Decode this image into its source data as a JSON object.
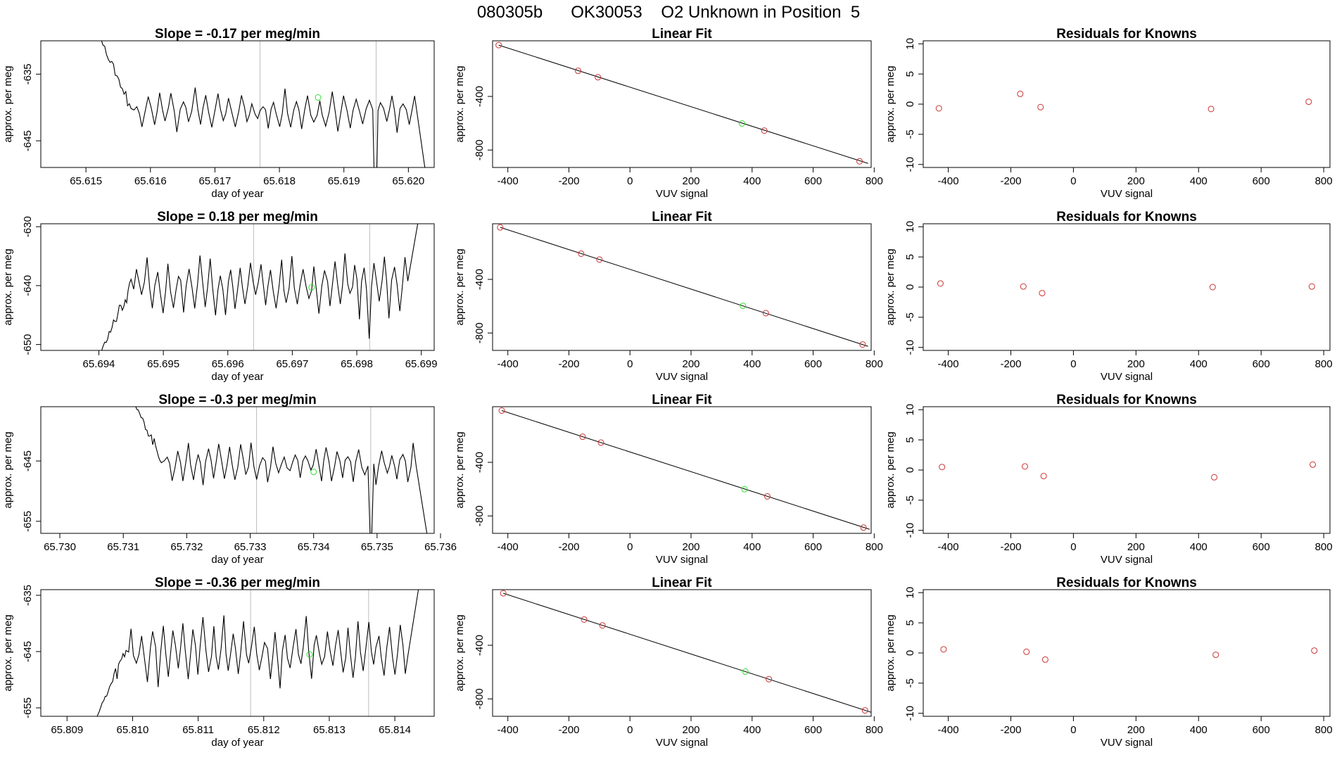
{
  "page": {
    "title": "080305b      OK30053    O2 Unknown in Position  5"
  },
  "colors": {
    "trace": "#000000",
    "axis": "#000000",
    "marker_line": "#bdbdbd",
    "unknown_point": "#33dd33",
    "known_point": "#cc3333"
  },
  "chart_data": [
    {
      "type": "line",
      "panel": "trace",
      "row": 1,
      "title": "Slope =  -0.17  per meg/min",
      "xlabel": "day of year",
      "ylabel": "approx. per meg",
      "xlim": [
        65.6143,
        65.6204
      ],
      "ylim": [
        -649,
        -630
      ],
      "xticks": [
        65.615,
        65.616,
        65.617,
        65.618,
        65.619,
        65.62
      ],
      "xtick_labels": [
        "65.615",
        "65.616",
        "65.617",
        "65.618",
        "65.619",
        "65.620"
      ],
      "yticks": [
        -635,
        -645
      ],
      "ytick_labels": [
        "-635",
        "-645"
      ],
      "vlines": [
        65.6177,
        65.6195
      ],
      "unknown_point": {
        "x": 65.6186,
        "y": -638.5
      },
      "trace_start": {
        "x": 65.6151,
        "y": -627
      },
      "trace_settle": {
        "x": 65.6157,
        "y": -640
      },
      "trace_end": {
        "x": 65.6203,
        "y": -652
      },
      "level": -640.5,
      "amplitude": 2.2,
      "period": 0.00018,
      "spikes": [
        {
          "x": 65.6195,
          "y": -660
        }
      ]
    },
    {
      "type": "line",
      "panel": "trace",
      "row": 2,
      "title": "Slope =  0.18  per meg/min",
      "xlabel": "day of year",
      "ylabel": "approx. per meg",
      "xlim": [
        65.6931,
        65.6992
      ],
      "ylim": [
        -651,
        -629.5
      ],
      "xticks": [
        65.694,
        65.695,
        65.696,
        65.697,
        65.698,
        65.699
      ],
      "xtick_labels": [
        "65.694",
        "65.695",
        "65.696",
        "65.697",
        "65.698",
        "65.699"
      ],
      "yticks": [
        -630,
        -640,
        -650
      ],
      "ytick_labels": [
        "-630",
        "-640",
        "-650"
      ],
      "vlines": [
        65.6964,
        65.6982
      ],
      "unknown_point": {
        "x": 65.6973,
        "y": -640.3
      },
      "trace_start": {
        "x": 65.694,
        "y": -652
      },
      "trace_settle": {
        "x": 65.6945,
        "y": -640
      },
      "trace_end": {
        "x": 65.699,
        "y": -626
      },
      "level": -640,
      "amplitude": 3.6,
      "period": 0.00016,
      "spikes": [
        {
          "x": 65.6982,
          "y": -649
        }
      ]
    },
    {
      "type": "line",
      "panel": "trace",
      "row": 3,
      "title": "Slope =  -0.3  per meg/min",
      "xlabel": "day of year",
      "ylabel": "approx. per meg",
      "xlim": [
        65.7297,
        65.7359
      ],
      "ylim": [
        -657,
        -636
      ],
      "xticks": [
        65.73,
        65.731,
        65.732,
        65.733,
        65.734,
        65.735,
        65.736
      ],
      "xtick_labels": [
        "65.730",
        "65.731",
        "65.732",
        "65.733",
        "65.734",
        "65.735",
        "65.736"
      ],
      "yticks": [
        -645,
        -655
      ],
      "ytick_labels": [
        "-645",
        "-655"
      ],
      "vlines": [
        65.7331,
        65.7349
      ],
      "unknown_point": {
        "x": 65.734,
        "y": -646.8
      },
      "trace_start": {
        "x": 65.7311,
        "y": -634
      },
      "trace_settle": {
        "x": 65.7316,
        "y": -644.5
      },
      "trace_end": {
        "x": 65.7358,
        "y": -658
      },
      "level": -645.5,
      "amplitude": 2.4,
      "period": 0.00017,
      "spikes": [
        {
          "x": 65.7349,
          "y": -662
        }
      ]
    },
    {
      "type": "line",
      "panel": "trace",
      "row": 4,
      "title": "Slope =  -0.36  per meg/min",
      "xlabel": "day of year",
      "ylabel": "approx. per meg",
      "xlim": [
        65.8086,
        65.8146
      ],
      "ylim": [
        -656.5,
        -634
      ],
      "xticks": [
        65.809,
        65.81,
        65.811,
        65.812,
        65.813,
        65.814
      ],
      "xtick_labels": [
        "65.809",
        "65.810",
        "65.811",
        "65.812",
        "65.813",
        "65.814"
      ],
      "yticks": [
        -635,
        -645,
        -655
      ],
      "ytick_labels": [
        "-635",
        "-645",
        "-655"
      ],
      "vlines": [
        65.8118,
        65.8136
      ],
      "unknown_point": {
        "x": 65.8127,
        "y": -645.5
      },
      "trace_start": {
        "x": 65.8094,
        "y": -658
      },
      "trace_settle": {
        "x": 65.8099,
        "y": -645
      },
      "trace_end": {
        "x": 65.8144,
        "y": -631
      },
      "level": -645,
      "amplitude": 4.2,
      "period": 0.00016,
      "spikes": []
    },
    {
      "type": "scatter",
      "panel": "fit",
      "row": 1,
      "title": "Linear Fit",
      "xlabel": "VUV signal",
      "ylabel": "approx. per meg",
      "xlim": [
        -450,
        790
      ],
      "ylim": [
        -930,
        15
      ],
      "xticks": [
        -400,
        -200,
        0,
        200,
        400,
        600,
        800
      ],
      "xtick_labels": [
        "-400",
        "-200",
        "0",
        "200",
        "400",
        "600",
        "800"
      ],
      "yticks": [
        -400,
        -800
      ],
      "ytick_labels": [
        "-400",
        "-800"
      ],
      "fit_line": {
        "x": [
          -430,
          780
        ],
        "y": [
          -17,
          -900
        ]
      },
      "knowns": {
        "x": [
          -430,
          -170,
          -105,
          440,
          752
        ],
        "y": [
          -17,
          -209,
          -257,
          -655,
          -884
        ]
      },
      "unknown": {
        "x": 367,
        "y": -602
      }
    },
    {
      "type": "scatter",
      "panel": "fit",
      "row": 2,
      "title": "Linear Fit",
      "xlabel": "VUV signal",
      "ylabel": "approx. per meg",
      "xlim": [
        -450,
        790
      ],
      "ylim": [
        -930,
        15
      ],
      "xticks": [
        -400,
        -200,
        0,
        200,
        400,
        600,
        800
      ],
      "xtick_labels": [
        "-400",
        "-200",
        "0",
        "200",
        "400",
        "600",
        "800"
      ],
      "yticks": [
        -400,
        -800
      ],
      "ytick_labels": [
        "-400",
        "-800"
      ],
      "fit_line": {
        "x": [
          -425,
          780
        ],
        "y": [
          -12,
          -900
        ]
      },
      "knowns": {
        "x": [
          -425,
          -160,
          -100,
          445,
          762
        ],
        "y": [
          -12,
          -208,
          -252,
          -652,
          -886
        ]
      },
      "unknown": {
        "x": 370,
        "y": -597
      }
    },
    {
      "type": "scatter",
      "panel": "fit",
      "row": 3,
      "title": "Linear Fit",
      "xlabel": "VUV signal",
      "ylabel": "approx. per meg",
      "xlim": [
        -450,
        790
      ],
      "ylim": [
        -930,
        15
      ],
      "xticks": [
        -400,
        -200,
        0,
        200,
        400,
        600,
        800
      ],
      "xtick_labels": [
        "-400",
        "-200",
        "0",
        "200",
        "400",
        "600",
        "800"
      ],
      "yticks": [
        -400,
        -800
      ],
      "ytick_labels": [
        "-400",
        "-800"
      ],
      "fit_line": {
        "x": [
          -420,
          785
        ],
        "y": [
          -14,
          -900
        ]
      },
      "knowns": {
        "x": [
          -420,
          -155,
          -95,
          450,
          765
        ],
        "y": [
          -14,
          -209,
          -253,
          -654,
          -887
        ]
      },
      "unknown": {
        "x": 375,
        "y": -600
      }
    },
    {
      "type": "scatter",
      "panel": "fit",
      "row": 4,
      "title": "Linear Fit",
      "xlabel": "VUV signal",
      "ylabel": "approx. per meg",
      "xlim": [
        -450,
        790
      ],
      "ylim": [
        -930,
        15
      ],
      "xticks": [
        -400,
        -200,
        0,
        200,
        400,
        600,
        800
      ],
      "xtick_labels": [
        "-400",
        "-200",
        "0",
        "200",
        "400",
        "600",
        "800"
      ],
      "yticks": [
        -400,
        -800
      ],
      "ytick_labels": [
        "-400",
        "-800"
      ],
      "fit_line": {
        "x": [
          -415,
          790
        ],
        "y": [
          -12,
          -900
        ]
      },
      "knowns": {
        "x": [
          -415,
          -150,
          -90,
          455,
          770
        ],
        "y": [
          -12,
          -208,
          -252,
          -653,
          -886
        ]
      },
      "unknown": {
        "x": 378,
        "y": -596
      }
    },
    {
      "type": "scatter",
      "panel": "residuals",
      "row": 1,
      "title": "Residuals for Knowns",
      "xlabel": "VUV signal",
      "ylabel": "approx. per meg",
      "xlim": [
        -480,
        820
      ],
      "ylim": [
        -10.5,
        10.5
      ],
      "xticks": [
        -400,
        -200,
        0,
        200,
        400,
        600,
        800
      ],
      "xtick_labels": [
        "-400",
        "-200",
        "0",
        "200",
        "400",
        "600",
        "800"
      ],
      "yticks": [
        10,
        5,
        0,
        -5,
        -10
      ],
      "ytick_labels": [
        "10",
        "5",
        "0",
        "-5",
        "-10"
      ],
      "points": {
        "x": [
          -430,
          -170,
          -105,
          440,
          752
        ],
        "y": [
          -0.7,
          1.7,
          -0.5,
          -0.8,
          0.4
        ]
      }
    },
    {
      "type": "scatter",
      "panel": "residuals",
      "row": 2,
      "title": "Residuals for Knowns",
      "xlabel": "VUV signal",
      "ylabel": "approx. per meg",
      "xlim": [
        -480,
        820
      ],
      "ylim": [
        -10.5,
        10.5
      ],
      "xticks": [
        -400,
        -200,
        0,
        200,
        400,
        600,
        800
      ],
      "xtick_labels": [
        "-400",
        "-200",
        "0",
        "200",
        "400",
        "600",
        "800"
      ],
      "yticks": [
        10,
        5,
        0,
        -5,
        -10
      ],
      "ytick_labels": [
        "10",
        "5",
        "0",
        "-5",
        "-10"
      ],
      "points": {
        "x": [
          -425,
          -160,
          -100,
          445,
          762
        ],
        "y": [
          0.6,
          0.1,
          -1.0,
          0.0,
          0.1
        ]
      }
    },
    {
      "type": "scatter",
      "panel": "residuals",
      "row": 3,
      "title": "Residuals for Knowns",
      "xlabel": "VUV signal",
      "ylabel": "approx. per meg",
      "xlim": [
        -480,
        820
      ],
      "ylim": [
        -10.5,
        10.5
      ],
      "xticks": [
        -400,
        -200,
        0,
        200,
        400,
        600,
        800
      ],
      "xtick_labels": [
        "-400",
        "-200",
        "0",
        "200",
        "400",
        "600",
        "800"
      ],
      "yticks": [
        10,
        5,
        0,
        -5,
        -10
      ],
      "ytick_labels": [
        "10",
        "5",
        "0",
        "-5",
        "-10"
      ],
      "points": {
        "x": [
          -420,
          -155,
          -95,
          450,
          765
        ],
        "y": [
          0.5,
          0.6,
          -1.0,
          -1.2,
          0.9
        ]
      }
    },
    {
      "type": "scatter",
      "panel": "residuals",
      "row": 4,
      "title": "Residuals for Knowns",
      "xlabel": "VUV signal",
      "ylabel": "approx. per meg",
      "xlim": [
        -480,
        820
      ],
      "ylim": [
        -10.5,
        10.5
      ],
      "xticks": [
        -400,
        -200,
        0,
        200,
        400,
        600,
        800
      ],
      "xtick_labels": [
        "-400",
        "-200",
        "0",
        "200",
        "400",
        "600",
        "800"
      ],
      "yticks": [
        10,
        5,
        0,
        -5,
        -10
      ],
      "ytick_labels": [
        "10",
        "5",
        "0",
        "-5",
        "-10"
      ],
      "points": {
        "x": [
          -415,
          -150,
          -90,
          455,
          770
        ],
        "y": [
          0.6,
          0.2,
          -1.1,
          -0.3,
          0.4
        ]
      }
    }
  ]
}
